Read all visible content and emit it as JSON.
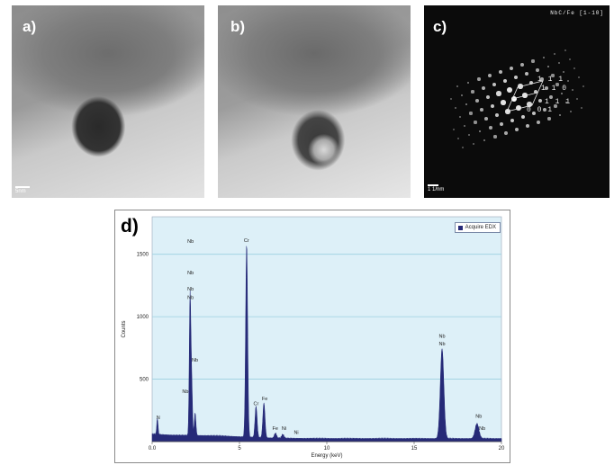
{
  "panels": {
    "a": {
      "label": "a)",
      "scale": "5nm"
    },
    "b": {
      "label": "b)"
    },
    "c": {
      "label": "c)",
      "zone_axis": "NbC/Fe [1-10]",
      "index_1": "1 1 1",
      "index_2": "1 1 0",
      "index_3": "1 1 1",
      "index_4": "0 0 1",
      "scale": "1 1/nm"
    },
    "d": {
      "label": "d)"
    }
  },
  "colors": {
    "spectrum_fill": "#262a78",
    "plot_bg": "#ddf0f8",
    "gridline": "#9ccfe0"
  },
  "chart_data": {
    "type": "area",
    "title": "",
    "xlabel": "Energy (keV)",
    "ylabel": "Counts",
    "xlim": [
      0,
      20
    ],
    "ylim": [
      0,
      1800
    ],
    "x_ticks": [
      "0.0",
      "5",
      "10",
      "15",
      "20"
    ],
    "y_ticks": [
      "500",
      "1000",
      "1500"
    ],
    "y_tick_values": [
      500,
      1000,
      1500
    ],
    "grid": true,
    "legend": {
      "position": "top-right",
      "entries": [
        "Acquire EDX"
      ]
    },
    "series": [
      {
        "name": "Acquire EDX",
        "peaks": [
          {
            "energy": 0.3,
            "counts": 130
          },
          {
            "energy": 2.17,
            "counts": 1100
          },
          {
            "energy": 2.26,
            "counts": 420
          },
          {
            "energy": 2.46,
            "counts": 180
          },
          {
            "energy": 5.41,
            "counts": 1550
          },
          {
            "energy": 5.95,
            "counts": 250
          },
          {
            "energy": 6.4,
            "counts": 280
          },
          {
            "energy": 7.06,
            "counts": 40
          },
          {
            "energy": 7.48,
            "counts": 30
          },
          {
            "energy": 16.6,
            "counts": 720
          },
          {
            "energy": 18.6,
            "counts": 120
          }
        ]
      }
    ],
    "annotations": [
      {
        "text": "Nb",
        "x": 2.2,
        "y": 1590
      },
      {
        "text": "Nb",
        "x": 2.2,
        "y": 1340
      },
      {
        "text": "Nb",
        "x": 2.2,
        "y": 1210
      },
      {
        "text": "Nb",
        "x": 2.2,
        "y": 1140
      },
      {
        "text": "Nb",
        "x": 2.45,
        "y": 640
      },
      {
        "text": "Nb",
        "x": 1.9,
        "y": 390
      },
      {
        "text": "N",
        "x": 0.35,
        "y": 180
      },
      {
        "text": "Cr",
        "x": 5.4,
        "y": 1600
      },
      {
        "text": "Cr",
        "x": 5.95,
        "y": 290
      },
      {
        "text": "Fe",
        "x": 6.45,
        "y": 330
      },
      {
        "text": "Fe",
        "x": 7.05,
        "y": 95
      },
      {
        "text": "Ni",
        "x": 7.55,
        "y": 95
      },
      {
        "text": "Ni",
        "x": 8.25,
        "y": 60
      },
      {
        "text": "Nb",
        "x": 16.6,
        "y": 830
      },
      {
        "text": "Nb",
        "x": 16.6,
        "y": 770
      },
      {
        "text": "Nb",
        "x": 18.7,
        "y": 190
      },
      {
        "text": "Nb",
        "x": 18.9,
        "y": 95
      }
    ]
  }
}
